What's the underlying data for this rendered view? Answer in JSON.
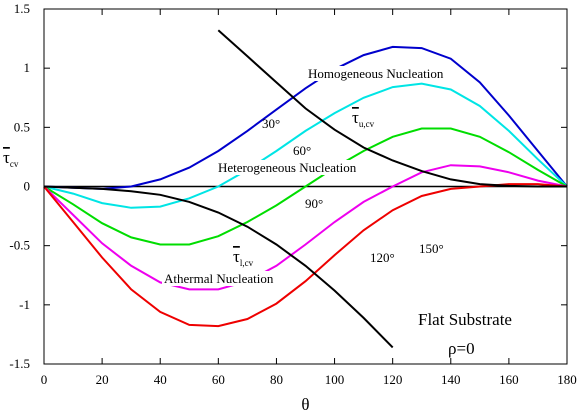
{
  "chart_data": {
    "type": "line",
    "x_label": "θ",
    "y_label": {
      "text": "τ",
      "sub": "cv"
    },
    "x": [
      0,
      10,
      20,
      30,
      40,
      50,
      60,
      70,
      80,
      90,
      100,
      110,
      120,
      130,
      140,
      150,
      160,
      170,
      180
    ],
    "series": [
      {
        "color": "#0000cc",
        "values": [
          0,
          -0.01,
          -0.02,
          0,
          0.06,
          0.16,
          0.3,
          0.47,
          0.65,
          0.83,
          0.99,
          1.11,
          1.18,
          1.17,
          1.08,
          0.88,
          0.6,
          0.3,
          0
        ]
      },
      {
        "color": "#00e5e5",
        "values": [
          0,
          -0.06,
          -0.14,
          -0.18,
          -0.17,
          -0.1,
          0,
          0.14,
          0.3,
          0.47,
          0.62,
          0.75,
          0.84,
          0.87,
          0.82,
          0.68,
          0.47,
          0.23,
          0
        ]
      },
      {
        "color": "#00dd00",
        "values": [
          0,
          -0.15,
          -0.31,
          -0.43,
          -0.49,
          -0.49,
          -0.42,
          -0.3,
          -0.16,
          0,
          0.16,
          0.3,
          0.42,
          0.49,
          0.49,
          0.42,
          0.29,
          0.14,
          0
        ]
      },
      {
        "color": "#ee00ee",
        "values": [
          0,
          -0.24,
          -0.48,
          -0.67,
          -0.81,
          -0.87,
          -0.87,
          -0.8,
          -0.67,
          -0.49,
          -0.3,
          -0.13,
          0,
          0.12,
          0.18,
          0.17,
          0.12,
          0.05,
          0
        ]
      },
      {
        "color": "#ee0000",
        "values": [
          0,
          -0.3,
          -0.6,
          -0.87,
          -1.06,
          -1.17,
          -1.18,
          -1.12,
          -0.99,
          -0.8,
          -0.58,
          -0.37,
          -0.2,
          -0.08,
          -0.02,
          0,
          0.02,
          0.02,
          0
        ]
      },
      {
        "color": "#000000",
        "values": [
          null,
          null,
          null,
          null,
          null,
          null,
          1.32,
          1.1,
          0.88,
          0.66,
          0.48,
          0.33,
          0.22,
          0.13,
          0.06,
          0.02,
          0.005,
          0,
          0
        ]
      },
      {
        "color": "#000000",
        "values": [
          0,
          -0.01,
          -0.02,
          -0.04,
          -0.07,
          -0.13,
          -0.22,
          -0.34,
          -0.49,
          -0.67,
          -0.88,
          -1.11,
          -1.36,
          null,
          null,
          null,
          null,
          null,
          null
        ]
      }
    ],
    "xlim": [
      0,
      180
    ],
    "ylim": [
      -1.5,
      1.5
    ],
    "xticks": [
      0,
      20,
      40,
      60,
      80,
      100,
      120,
      140,
      160,
      180
    ],
    "yticks": [
      1.5,
      1,
      0.5,
      0,
      -0.5,
      -1,
      -1.5
    ],
    "annotations": [
      {
        "text": "Homogeneous Nucleation"
      },
      {
        "text": "Heterogeneous Nucleation"
      },
      {
        "text": "Athermal Nucleation"
      },
      {
        "text": "30°"
      },
      {
        "text": "60°"
      },
      {
        "text": "90°"
      },
      {
        "text": "120°"
      },
      {
        "text": "150°"
      },
      {
        "text": "τ",
        "sub": "u,cv"
      },
      {
        "text": "τ",
        "sub": "l,cv"
      },
      {
        "text": "Flat Substrate"
      },
      {
        "text": "ρ=0"
      }
    ]
  }
}
